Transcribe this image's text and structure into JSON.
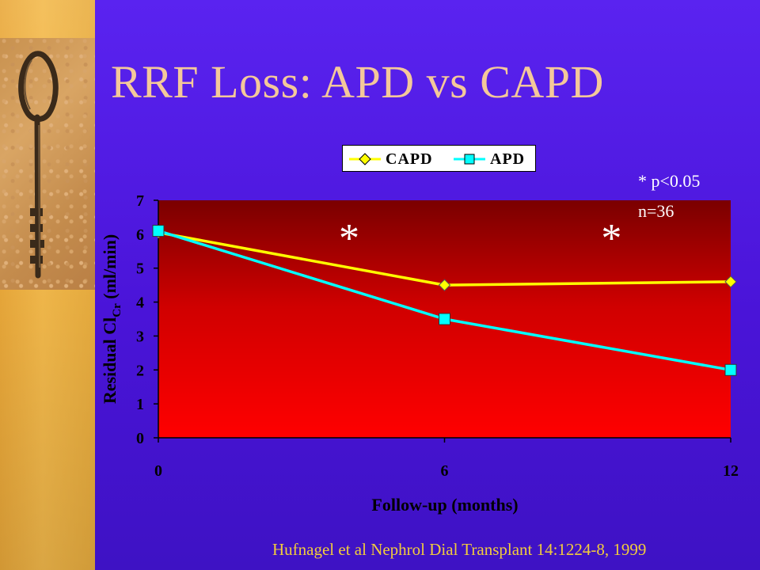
{
  "slide": {
    "title": "RRF Loss: APD vs CAPD",
    "citation": "Hufnagel et al Nephrol Dial Transplant 14:1224-8, 1999"
  },
  "annotations": {
    "significance": "* p<0.05",
    "sample_size": "n=36",
    "star_marker": "*"
  },
  "colors": {
    "background": "#4a14d8",
    "left_strip": "#f0b44a",
    "title": "#f4c89a",
    "citation": "#f2cc3c",
    "plot_top": "#7a0000",
    "plot_bottom": "#ff0000",
    "capd": "#ffff00",
    "apd": "#00ffff"
  },
  "chart_data": {
    "type": "line",
    "x": [
      0,
      6,
      12
    ],
    "xticks": [
      "0",
      "6",
      "12"
    ],
    "xlabel": "Follow-up (months)",
    "ylabel": "Residual ClCr (ml/min)",
    "ylabel_main": "Residual Cl",
    "ylabel_sub": "Cr",
    "ylabel_tail": " (ml/min)",
    "ylim": [
      0,
      7
    ],
    "yticks": [
      "0",
      "1",
      "2",
      "3",
      "4",
      "5",
      "6",
      "7"
    ],
    "grid": false,
    "legend_position": "top",
    "series": [
      {
        "name": "CAPD",
        "values": [
          6.05,
          4.5,
          4.6
        ],
        "marker": "diamond",
        "color": "#ffff00"
      },
      {
        "name": "APD",
        "values": [
          6.1,
          3.5,
          2.0
        ],
        "marker": "square",
        "color": "#00ffff"
      }
    ],
    "significance_markers_at_x": [
      4,
      9.5
    ]
  }
}
